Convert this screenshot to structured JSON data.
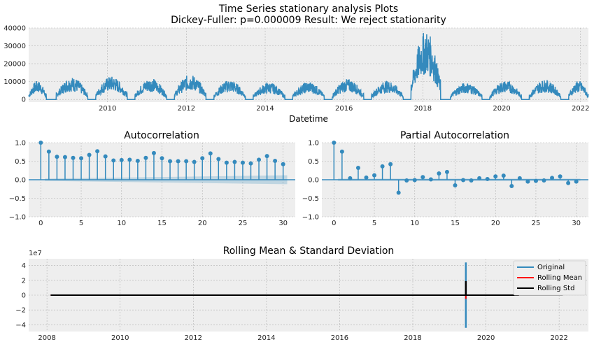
{
  "figure": {
    "title_line1": "Time Series stationary analysis Plots",
    "title_line2": "Dickey-Fuller: p=0.000009 Result: We reject stationarity"
  },
  "chart_data": [
    {
      "type": "line",
      "id": "timeseries",
      "title": "",
      "xlabel": "Datetime",
      "ylabel": "",
      "xlim": [
        2008.0,
        2022.2
      ],
      "ylim": [
        -1500,
        40000
      ],
      "x_ticks": [
        2010,
        2012,
        2014,
        2016,
        2018,
        2020,
        2022
      ],
      "y_ticks": [
        0,
        10000,
        20000,
        30000,
        40000
      ],
      "grid": true,
      "color": "#348ABD",
      "note_series": "seasonal bursts per year (start, end, peak)",
      "bursts": [
        {
          "start": 2008.0,
          "end": 2008.45,
          "peak": 10500
        },
        {
          "start": 2008.7,
          "end": 2009.5,
          "peak": 12500
        },
        {
          "start": 2009.7,
          "end": 2010.5,
          "peak": 13000
        },
        {
          "start": 2010.7,
          "end": 2011.5,
          "peak": 12000
        },
        {
          "start": 2011.7,
          "end": 2012.5,
          "peak": 14000
        },
        {
          "start": 2012.7,
          "end": 2013.5,
          "peak": 11000
        },
        {
          "start": 2013.7,
          "end": 2014.5,
          "peak": 9500
        },
        {
          "start": 2014.7,
          "end": 2015.5,
          "peak": 10000
        },
        {
          "start": 2015.7,
          "end": 2016.5,
          "peak": 11500
        },
        {
          "start": 2016.7,
          "end": 2017.5,
          "peak": 10500
        },
        {
          "start": 2017.7,
          "end": 2018.45,
          "peak": 38500
        },
        {
          "start": 2018.7,
          "end": 2019.5,
          "peak": 9500
        },
        {
          "start": 2019.7,
          "end": 2020.5,
          "peak": 10500
        },
        {
          "start": 2020.7,
          "end": 2021.5,
          "peak": 11000
        },
        {
          "start": 2021.7,
          "end": 2022.2,
          "peak": 10500
        }
      ]
    },
    {
      "type": "stem",
      "id": "acf",
      "title": "Autocorrelation",
      "xlim": [
        -1.5,
        31.5
      ],
      "ylim": [
        -1.0,
        1.0
      ],
      "x_ticks": [
        0,
        5,
        10,
        15,
        20,
        25,
        30
      ],
      "y_ticks": [
        -1.0,
        -0.5,
        0.0,
        0.5,
        1.0
      ],
      "grid": true,
      "lags": [
        0,
        1,
        2,
        3,
        4,
        5,
        6,
        7,
        8,
        9,
        10,
        11,
        12,
        13,
        14,
        15,
        16,
        17,
        18,
        19,
        20,
        21,
        22,
        23,
        24,
        25,
        26,
        27,
        28,
        29,
        30
      ],
      "values": [
        1.0,
        0.76,
        0.62,
        0.61,
        0.59,
        0.58,
        0.67,
        0.77,
        0.63,
        0.52,
        0.53,
        0.54,
        0.51,
        0.59,
        0.72,
        0.58,
        0.5,
        0.5,
        0.5,
        0.48,
        0.58,
        0.71,
        0.56,
        0.46,
        0.48,
        0.46,
        0.44,
        0.54,
        0.64,
        0.51,
        0.42
      ],
      "confidence_band": {
        "start": 0.03,
        "end": 0.12
      }
    },
    {
      "type": "stem",
      "id": "pacf",
      "title": "Partial Autocorrelation",
      "xlim": [
        -1.5,
        31.5
      ],
      "ylim": [
        -1.0,
        1.0
      ],
      "x_ticks": [
        0,
        5,
        10,
        15,
        20,
        25,
        30
      ],
      "y_ticks": [
        -1.0,
        -0.5,
        0.0,
        0.5,
        1.0
      ],
      "grid": true,
      "lags": [
        0,
        1,
        2,
        3,
        4,
        5,
        6,
        7,
        8,
        9,
        10,
        11,
        12,
        13,
        14,
        15,
        16,
        17,
        18,
        19,
        20,
        21,
        22,
        23,
        24,
        25,
        26,
        27,
        28,
        29,
        30
      ],
      "values": [
        1.0,
        0.76,
        0.04,
        0.32,
        0.06,
        0.12,
        0.36,
        0.42,
        -0.35,
        -0.02,
        -0.01,
        0.07,
        0.01,
        0.17,
        0.21,
        -0.15,
        -0.01,
        -0.02,
        0.04,
        0.02,
        0.09,
        0.11,
        -0.17,
        0.04,
        -0.05,
        -0.03,
        -0.02,
        0.05,
        0.09,
        -0.09,
        -0.05
      ],
      "confidence_band": {
        "start": 0.03,
        "end": 0.03
      }
    },
    {
      "type": "line",
      "id": "rolling",
      "title": "Rolling Mean & Standard Deviation",
      "exponent_label": "1e7",
      "xlim": [
        2007.5,
        2022.8
      ],
      "ylim": [
        -4.9,
        4.9
      ],
      "x_ticks": [
        2008,
        2010,
        2012,
        2014,
        2016,
        2018,
        2020,
        2022
      ],
      "y_ticks": [
        -4,
        -2,
        0,
        2,
        4
      ],
      "grid": true,
      "legend_position": "top-right",
      "series": [
        {
          "name": "Original",
          "color": "#348ABD",
          "x_range": [
            2008.1,
            2022.1
          ],
          "spike_x": 2019.45,
          "spike_range": [
            -4.4,
            4.4
          ]
        },
        {
          "name": "Rolling Mean",
          "color": "#ff0000",
          "x_range": [
            2008.1,
            2022.1
          ],
          "spike_x": 2019.45,
          "spike_range": [
            -0.5,
            0.4
          ]
        },
        {
          "name": "Rolling Std",
          "color": "#000000",
          "x_range": [
            2008.1,
            2022.1
          ],
          "spike_x": 2019.45,
          "spike_range": [
            0.0,
            1.9
          ]
        }
      ]
    }
  ]
}
